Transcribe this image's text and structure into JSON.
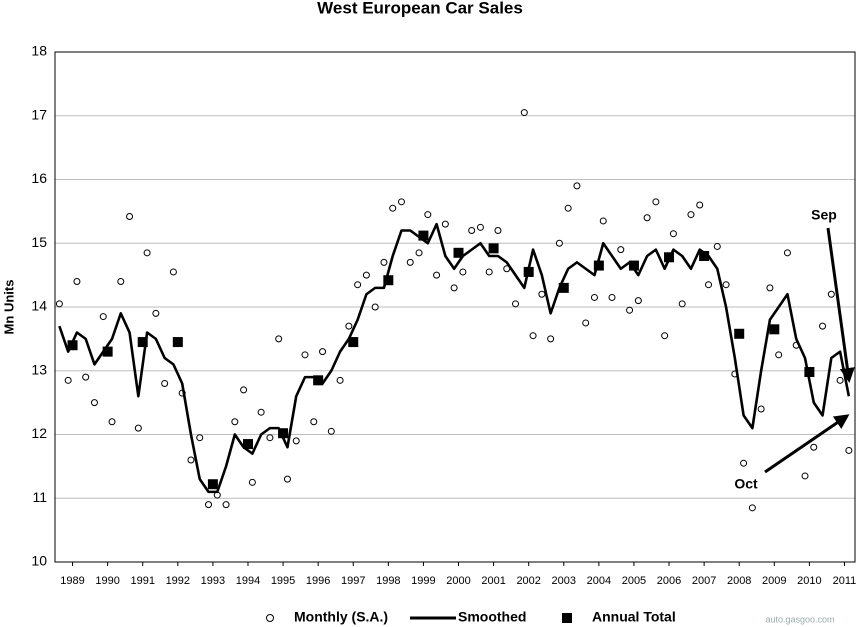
{
  "chart_data": {
    "type": "scatter",
    "title": "West European Car Sales",
    "y_label": "Mn Units",
    "xlim": [
      1989,
      2011.8
    ],
    "ylim": [
      10,
      18
    ],
    "yticks": [
      10,
      11,
      12,
      13,
      14,
      15,
      16,
      17,
      18
    ],
    "xticks": [
      {
        "value": 1989.5,
        "label": "1989"
      },
      {
        "value": 1990.5,
        "label": "1990"
      },
      {
        "value": 1991.5,
        "label": "1991"
      },
      {
        "value": 1992.5,
        "label": "1992"
      },
      {
        "value": 1993.5,
        "label": "1993"
      },
      {
        "value": 1994.5,
        "label": "1994"
      },
      {
        "value": 1995.5,
        "label": "1995"
      },
      {
        "value": 1996.5,
        "label": "1996"
      },
      {
        "value": 1997.5,
        "label": "1997"
      },
      {
        "value": 1998.5,
        "label": "1998"
      },
      {
        "value": 1999.5,
        "label": "1999"
      },
      {
        "value": 2000.5,
        "label": "2000"
      },
      {
        "value": 2001.5,
        "label": "2001"
      },
      {
        "value": 2002.5,
        "label": "2002"
      },
      {
        "value": 2003.5,
        "label": "2003"
      },
      {
        "value": 2004.5,
        "label": "2004"
      },
      {
        "value": 2005.5,
        "label": "2005"
      },
      {
        "value": 2006.5,
        "label": "2006"
      },
      {
        "value": 2007.5,
        "label": "2007"
      },
      {
        "value": 2008.5,
        "label": "2008"
      },
      {
        "value": 2009.5,
        "label": "2009"
      },
      {
        "value": 2010.5,
        "label": "2010"
      },
      {
        "value": 2011.5,
        "label": "2011"
      }
    ],
    "grid": true,
    "series": [
      {
        "name": "Monthly (S.A.)",
        "kind": "scatter",
        "color": "#000000",
        "x": [
          1989.125,
          1989.375,
          1989.625,
          1989.875,
          1990.125,
          1990.375,
          1990.625,
          1990.875,
          1991.125,
          1991.375,
          1991.625,
          1991.875,
          1992.125,
          1992.375,
          1992.625,
          1992.875,
          1993.125,
          1993.375,
          1993.625,
          1993.875,
          1994.125,
          1994.375,
          1994.625,
          1994.875,
          1995.125,
          1995.375,
          1995.625,
          1995.875,
          1996.125,
          1996.375,
          1996.625,
          1996.875,
          1997.125,
          1997.375,
          1997.625,
          1997.875,
          1998.125,
          1998.375,
          1998.625,
          1998.875,
          1999.125,
          1999.375,
          1999.625,
          1999.875,
          2000.125,
          2000.375,
          2000.625,
          2000.875,
          2001.125,
          2001.375,
          2001.625,
          2001.875,
          2002.125,
          2002.375,
          2002.625,
          2002.875,
          2003.125,
          2003.375,
          2003.625,
          2003.875,
          2004.125,
          2004.375,
          2004.625,
          2004.875,
          2005.125,
          2005.375,
          2005.625,
          2005.875,
          2006.125,
          2006.375,
          2006.625,
          2006.875,
          2007.125,
          2007.375,
          2007.625,
          2007.875,
          2008.125,
          2008.375,
          2008.625,
          2008.875,
          2009.125,
          2009.375,
          2009.625,
          2009.875,
          2010.125,
          2010.375,
          2010.625,
          2010.875,
          2011.125,
          2011.375,
          2011.625
        ],
        "values": [
          14.05,
          12.85,
          14.4,
          12.9,
          12.5,
          13.85,
          12.2,
          14.4,
          15.42,
          12.1,
          14.85,
          13.9,
          12.8,
          14.55,
          12.65,
          11.6,
          11.95,
          10.9,
          11.05,
          10.9,
          12.2,
          12.7,
          11.25,
          12.35,
          11.95,
          13.5,
          11.3,
          11.9,
          13.25,
          12.2,
          13.3,
          12.05,
          12.85,
          13.7,
          14.35,
          14.5,
          14.0,
          14.7,
          15.55,
          15.65,
          14.7,
          14.85,
          15.45,
          14.5,
          15.3,
          14.3,
          14.55,
          15.2,
          15.25,
          14.55,
          15.2,
          14.6,
          14.05,
          17.05,
          13.55,
          14.2,
          13.5,
          15.0,
          15.55,
          15.9,
          13.75,
          14.15,
          15.35,
          14.15,
          14.9,
          13.95,
          14.1,
          15.4,
          15.65,
          13.55,
          15.15,
          14.05,
          15.45,
          15.6,
          14.35,
          14.95,
          14.35,
          12.95,
          11.55,
          10.85,
          12.4,
          14.3,
          13.25,
          14.85,
          13.4,
          11.35,
          11.8,
          13.7,
          14.2,
          12.85,
          11.75
        ]
      },
      {
        "name": "Smoothed",
        "kind": "line",
        "color": "#000000",
        "x": [
          1989.125,
          1989.375,
          1989.625,
          1989.875,
          1990.125,
          1990.375,
          1990.625,
          1990.875,
          1991.125,
          1991.375,
          1991.625,
          1991.875,
          1992.125,
          1992.375,
          1992.625,
          1992.875,
          1993.125,
          1993.375,
          1993.625,
          1993.875,
          1994.125,
          1994.375,
          1994.625,
          1994.875,
          1995.125,
          1995.375,
          1995.625,
          1995.875,
          1996.125,
          1996.375,
          1996.625,
          1996.875,
          1997.125,
          1997.375,
          1997.625,
          1997.875,
          1998.125,
          1998.375,
          1998.625,
          1998.875,
          1999.125,
          1999.375,
          1999.625,
          1999.875,
          2000.125,
          2000.375,
          2000.625,
          2000.875,
          2001.125,
          2001.375,
          2001.625,
          2001.875,
          2002.125,
          2002.375,
          2002.625,
          2002.875,
          2003.125,
          2003.375,
          2003.625,
          2003.875,
          2004.125,
          2004.375,
          2004.625,
          2004.875,
          2005.125,
          2005.375,
          2005.625,
          2005.875,
          2006.125,
          2006.375,
          2006.625,
          2006.875,
          2007.125,
          2007.375,
          2007.625,
          2007.875,
          2008.125,
          2008.375,
          2008.625,
          2008.875,
          2009.125,
          2009.375,
          2009.625,
          2009.875,
          2010.125,
          2010.375,
          2010.625,
          2010.875,
          2011.125,
          2011.375,
          2011.625
        ],
        "values": [
          13.7,
          13.3,
          13.6,
          13.5,
          13.1,
          13.3,
          13.5,
          13.9,
          13.6,
          12.6,
          13.6,
          13.5,
          13.2,
          13.1,
          12.8,
          12.0,
          11.3,
          11.1,
          11.1,
          11.5,
          12.0,
          11.8,
          11.7,
          12.0,
          12.1,
          12.1,
          11.8,
          12.6,
          12.9,
          12.9,
          12.8,
          13.0,
          13.3,
          13.5,
          13.8,
          14.2,
          14.3,
          14.3,
          14.8,
          15.2,
          15.2,
          15.1,
          15.0,
          15.3,
          14.8,
          14.6,
          14.8,
          14.9,
          15.0,
          14.8,
          14.8,
          14.7,
          14.5,
          14.3,
          14.9,
          14.5,
          13.9,
          14.3,
          14.6,
          14.7,
          14.6,
          14.5,
          15.0,
          14.8,
          14.6,
          14.7,
          14.5,
          14.8,
          14.9,
          14.6,
          14.9,
          14.8,
          14.6,
          14.9,
          14.8,
          14.6,
          14.0,
          13.2,
          12.3,
          12.1,
          13.0,
          13.8,
          14.0,
          14.2,
          13.5,
          13.2,
          12.5,
          12.3,
          13.2,
          13.3,
          12.6
        ]
      },
      {
        "name": "Annual Total",
        "kind": "square",
        "color": "#000000",
        "x": [
          1989.5,
          1990.5,
          1991.5,
          1992.5,
          1993.5,
          1994.5,
          1995.5,
          1996.5,
          1997.5,
          1998.5,
          1999.5,
          2000.5,
          2001.5,
          2002.5,
          2003.5,
          2004.5,
          2005.5,
          2006.5,
          2007.5,
          2008.5,
          2009.5,
          2010.5
        ],
        "values": [
          13.4,
          13.3,
          13.45,
          13.45,
          11.22,
          11.85,
          12.02,
          12.85,
          13.45,
          14.42,
          15.12,
          14.85,
          14.92,
          14.55,
          14.3,
          14.65,
          14.65,
          14.78,
          14.8,
          13.58,
          13.65,
          12.98
        ]
      }
    ],
    "annotations": [
      "Sep",
      "Oct"
    ],
    "watermark": "auto.gasgoo.com"
  }
}
